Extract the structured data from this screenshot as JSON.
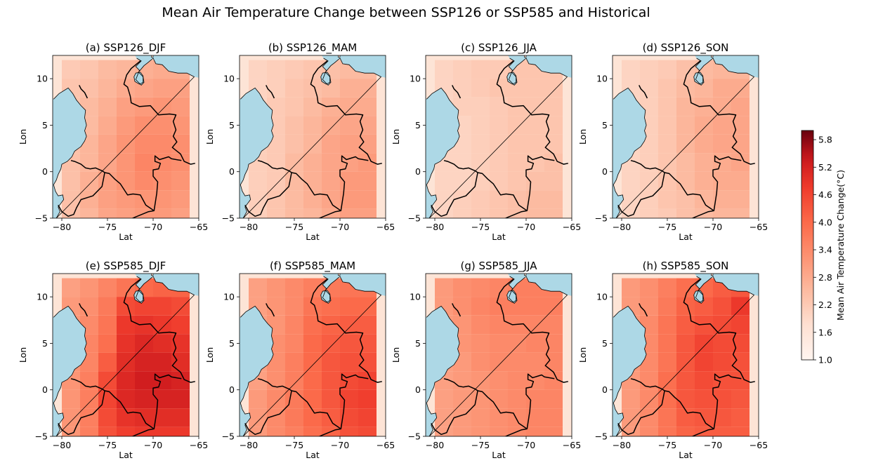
{
  "title": "Mean Air Temperature Change between SSP126 or SSP585 and Historical",
  "colorbar": {
    "label": "Mean Air Temperature Change(°C)",
    "ticks": [
      "1.0",
      "1.6",
      "2.2",
      "2.8",
      "3.4",
      "4.0",
      "4.6",
      "5.2",
      "5.8"
    ],
    "min": 1.0,
    "max": 6.0,
    "cmap": "Reds"
  },
  "colors": {
    "ocean": "#add8e6",
    "land": "#fde4d6",
    "border": "#000000"
  },
  "chart_data": {
    "type": "heatmap",
    "x_grid_centers": [
      -79,
      -77,
      -75,
      -73,
      -71,
      -69,
      -67
    ],
    "y_grid_centers": [
      11,
      9,
      7,
      5,
      3,
      1,
      -1,
      -3,
      -5
    ],
    "xlim": [
      -81,
      -65
    ],
    "ylim": [
      -5,
      12.5
    ],
    "x_ticks": [
      "-80",
      "-75",
      "-70",
      "-65"
    ],
    "y_ticks": [
      "-5",
      "0",
      "5",
      "10"
    ],
    "xlabel": "Lat",
    "ylabel": "Lon",
    "panels": [
      {
        "title": "(a) SSP126_DJF",
        "values": [
          [
            2.2,
            2.3,
            2.5,
            2.6,
            2.7,
            2.8,
            2.8
          ],
          [
            2.3,
            2.4,
            2.6,
            2.8,
            2.9,
            3.0,
            3.0
          ],
          [
            2.3,
            2.5,
            2.7,
            3.0,
            3.1,
            3.2,
            3.1
          ],
          [
            2.4,
            2.5,
            2.8,
            3.1,
            3.3,
            3.3,
            3.2
          ],
          [
            2.4,
            2.6,
            2.9,
            3.2,
            3.4,
            3.4,
            3.3
          ],
          [
            2.4,
            2.6,
            2.9,
            3.2,
            3.5,
            3.4,
            3.3
          ],
          [
            2.4,
            2.7,
            3.0,
            3.2,
            3.4,
            3.3,
            3.2
          ],
          [
            2.4,
            2.7,
            3.0,
            3.1,
            3.2,
            3.2,
            3.1
          ],
          [
            2.4,
            2.6,
            2.9,
            3.0,
            3.1,
            3.1,
            3.0
          ]
        ]
      },
      {
        "title": "(b) SSP126_MAM",
        "values": [
          [
            2.0,
            2.1,
            2.2,
            2.3,
            2.4,
            2.5,
            2.5
          ],
          [
            2.0,
            2.1,
            2.3,
            2.4,
            2.5,
            2.7,
            2.7
          ],
          [
            2.0,
            2.2,
            2.3,
            2.5,
            2.7,
            2.8,
            2.8
          ],
          [
            2.1,
            2.2,
            2.4,
            2.6,
            2.8,
            2.9,
            2.9
          ],
          [
            2.1,
            2.2,
            2.4,
            2.6,
            2.9,
            3.0,
            3.0
          ],
          [
            2.1,
            2.2,
            2.5,
            2.7,
            2.9,
            3.0,
            3.1
          ],
          [
            2.1,
            2.2,
            2.5,
            2.7,
            2.9,
            3.1,
            3.1
          ],
          [
            2.1,
            2.3,
            2.5,
            2.7,
            2.9,
            3.1,
            3.1
          ],
          [
            2.1,
            2.3,
            2.5,
            2.6,
            2.8,
            3.0,
            3.0
          ]
        ]
      },
      {
        "title": "(c) SSP126_JJA",
        "values": [
          [
            2.0,
            2.1,
            2.2,
            2.2,
            2.3,
            2.3,
            2.3
          ],
          [
            2.0,
            2.1,
            2.2,
            2.3,
            2.3,
            2.3,
            2.3
          ],
          [
            2.0,
            2.1,
            2.1,
            2.2,
            2.3,
            2.3,
            2.3
          ],
          [
            2.0,
            2.0,
            2.1,
            2.2,
            2.3,
            2.3,
            2.3
          ],
          [
            2.0,
            2.0,
            2.1,
            2.2,
            2.3,
            2.3,
            2.3
          ],
          [
            2.0,
            2.0,
            2.1,
            2.2,
            2.3,
            2.3,
            2.4
          ],
          [
            2.0,
            2.0,
            2.1,
            2.2,
            2.3,
            2.4,
            2.4
          ],
          [
            2.0,
            2.1,
            2.2,
            2.3,
            2.4,
            2.5,
            2.5
          ],
          [
            2.0,
            2.1,
            2.2,
            2.3,
            2.4,
            2.5,
            2.5
          ]
        ]
      },
      {
        "title": "(d) SSP126_SON",
        "values": [
          [
            2.0,
            2.1,
            2.2,
            2.4,
            2.5,
            2.6,
            2.6
          ],
          [
            2.0,
            2.1,
            2.3,
            2.5,
            2.6,
            2.8,
            2.8
          ],
          [
            2.0,
            2.1,
            2.3,
            2.6,
            2.7,
            2.8,
            2.9
          ],
          [
            2.0,
            2.1,
            2.3,
            2.6,
            2.8,
            2.9,
            2.9
          ],
          [
            2.0,
            2.1,
            2.3,
            2.6,
            2.8,
            2.9,
            2.9
          ],
          [
            2.0,
            2.1,
            2.3,
            2.5,
            2.7,
            2.8,
            2.9
          ],
          [
            2.0,
            2.1,
            2.3,
            2.5,
            2.7,
            2.8,
            2.8
          ],
          [
            2.0,
            2.1,
            2.3,
            2.4,
            2.6,
            2.7,
            2.7
          ],
          [
            2.0,
            2.1,
            2.2,
            2.4,
            2.5,
            2.6,
            2.6
          ]
        ]
      },
      {
        "title": "(e) SSP585_DJF",
        "values": [
          [
            3.0,
            3.2,
            3.5,
            3.8,
            4.0,
            4.1,
            4.1
          ],
          [
            3.1,
            3.3,
            3.7,
            4.5,
            4.6,
            4.6,
            4.5
          ],
          [
            3.1,
            3.4,
            3.8,
            4.8,
            4.9,
            4.8,
            4.7
          ],
          [
            3.1,
            3.5,
            3.9,
            4.9,
            5.1,
            5.0,
            4.9
          ],
          [
            3.2,
            3.5,
            4.2,
            5.0,
            5.2,
            5.2,
            5.0
          ],
          [
            3.2,
            3.6,
            4.5,
            5.1,
            5.3,
            5.3,
            5.2
          ],
          [
            3.2,
            3.6,
            4.6,
            5.1,
            5.2,
            5.2,
            5.2
          ],
          [
            3.2,
            3.6,
            4.5,
            4.9,
            5.0,
            5.0,
            5.0
          ],
          [
            3.2,
            3.6,
            4.4,
            4.7,
            4.8,
            4.8,
            4.8
          ]
        ]
      },
      {
        "title": "(f) SSP585_MAM",
        "values": [
          [
            3.0,
            3.2,
            3.4,
            3.6,
            3.7,
            3.8,
            3.8
          ],
          [
            3.0,
            3.2,
            3.4,
            3.8,
            3.9,
            4.0,
            4.0
          ],
          [
            3.0,
            3.2,
            3.5,
            3.9,
            4.1,
            4.2,
            4.2
          ],
          [
            3.0,
            3.3,
            3.5,
            4.0,
            4.2,
            4.3,
            4.3
          ],
          [
            3.0,
            3.3,
            3.6,
            4.0,
            4.3,
            4.4,
            4.4
          ],
          [
            3.0,
            3.3,
            3.6,
            4.0,
            4.3,
            4.5,
            4.6
          ],
          [
            3.1,
            3.4,
            3.7,
            4.0,
            4.3,
            4.6,
            4.7
          ],
          [
            3.1,
            3.4,
            3.7,
            4.0,
            4.2,
            4.5,
            4.6
          ],
          [
            3.1,
            3.4,
            3.6,
            3.9,
            4.1,
            4.4,
            4.5
          ]
        ]
      },
      {
        "title": "(g) SSP585_JJA",
        "values": [
          [
            3.1,
            3.3,
            3.4,
            3.5,
            3.6,
            3.6,
            3.6
          ],
          [
            3.1,
            3.3,
            3.5,
            3.6,
            3.6,
            3.6,
            3.6
          ],
          [
            3.1,
            3.2,
            3.4,
            3.5,
            3.5,
            3.5,
            3.5
          ],
          [
            3.1,
            3.2,
            3.3,
            3.4,
            3.4,
            3.5,
            3.5
          ],
          [
            3.0,
            3.1,
            3.3,
            3.4,
            3.4,
            3.4,
            3.5
          ],
          [
            3.0,
            3.1,
            3.2,
            3.3,
            3.4,
            3.4,
            3.5
          ],
          [
            3.0,
            3.1,
            3.2,
            3.3,
            3.4,
            3.5,
            3.5
          ],
          [
            3.0,
            3.1,
            3.2,
            3.3,
            3.4,
            3.5,
            3.5
          ],
          [
            3.0,
            3.1,
            3.2,
            3.3,
            3.4,
            3.5,
            3.5
          ]
        ]
      },
      {
        "title": "(h) SSP585_SON",
        "values": [
          [
            3.1,
            3.3,
            3.6,
            3.9,
            4.0,
            4.2,
            4.3
          ],
          [
            3.1,
            3.3,
            3.7,
            4.1,
            4.2,
            4.4,
            4.8
          ],
          [
            3.1,
            3.4,
            3.8,
            4.2,
            4.4,
            4.5,
            4.6
          ],
          [
            3.1,
            3.4,
            3.8,
            4.3,
            4.6,
            4.5,
            4.5
          ],
          [
            3.1,
            3.4,
            3.8,
            4.3,
            4.6,
            4.5,
            4.4
          ],
          [
            3.1,
            3.4,
            3.9,
            4.3,
            4.5,
            4.4,
            4.4
          ],
          [
            3.1,
            3.4,
            3.9,
            4.3,
            4.4,
            4.4,
            4.3
          ],
          [
            3.1,
            3.4,
            3.8,
            4.2,
            4.3,
            4.3,
            4.2
          ],
          [
            3.1,
            3.4,
            3.8,
            4.1,
            4.2,
            4.2,
            4.2
          ]
        ]
      }
    ]
  }
}
